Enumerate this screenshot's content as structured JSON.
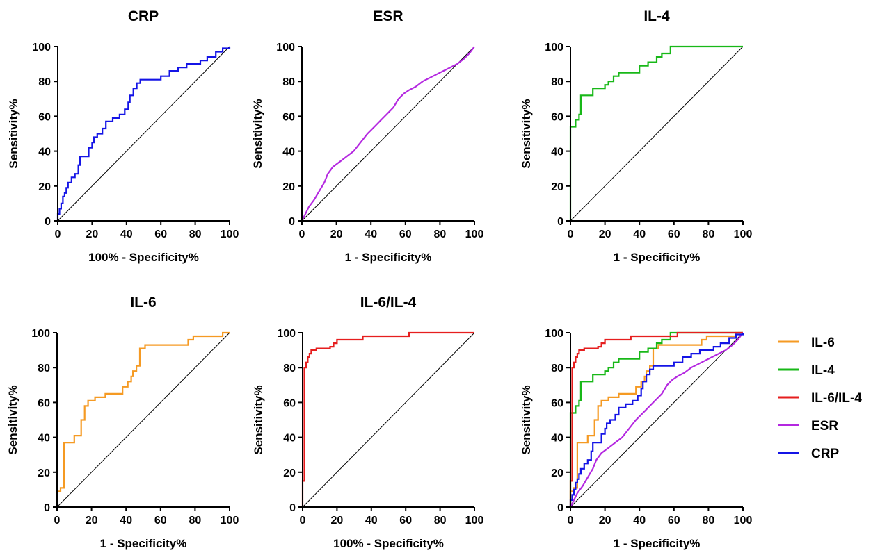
{
  "chart_data": [
    {
      "type": "line",
      "title": "CRP",
      "xlabel": "100% - Specificity%",
      "ylabel": "Sensitivity%",
      "xlim": [
        0,
        100
      ],
      "ylim": [
        0,
        100
      ],
      "xticks": [
        "0",
        "20",
        "40",
        "60",
        "80",
        "100"
      ],
      "yticks": [
        "0",
        "20",
        "40",
        "60",
        "80",
        "100"
      ],
      "reference_line": true,
      "series": [
        {
          "color": "#1414e6",
          "points": [
            [
              0,
              0
            ],
            [
              0,
              4
            ],
            [
              1,
              4
            ],
            [
              1,
              7
            ],
            [
              2,
              7
            ],
            [
              2,
              10
            ],
            [
              3,
              10
            ],
            [
              3,
              14
            ],
            [
              4,
              14
            ],
            [
              4,
              16
            ],
            [
              5,
              16
            ],
            [
              5,
              19
            ],
            [
              6,
              19
            ],
            [
              6,
              22
            ],
            [
              8,
              22
            ],
            [
              8,
              25
            ],
            [
              10,
              25
            ],
            [
              10,
              27
            ],
            [
              12,
              27
            ],
            [
              12,
              32
            ],
            [
              13,
              32
            ],
            [
              13,
              37
            ],
            [
              18,
              37
            ],
            [
              18,
              42
            ],
            [
              20,
              42
            ],
            [
              20,
              45
            ],
            [
              21,
              45
            ],
            [
              21,
              48
            ],
            [
              23,
              48
            ],
            [
              23,
              50
            ],
            [
              26,
              50
            ],
            [
              26,
              53
            ],
            [
              28,
              53
            ],
            [
              28,
              57
            ],
            [
              32,
              57
            ],
            [
              32,
              59
            ],
            [
              36,
              59
            ],
            [
              36,
              61
            ],
            [
              39,
              61
            ],
            [
              39,
              64
            ],
            [
              41,
              64
            ],
            [
              41,
              68
            ],
            [
              42,
              68
            ],
            [
              42,
              72
            ],
            [
              44,
              72
            ],
            [
              44,
              76
            ],
            [
              46,
              76
            ],
            [
              46,
              79
            ],
            [
              48,
              79
            ],
            [
              48,
              81
            ],
            [
              60,
              81
            ],
            [
              60,
              83
            ],
            [
              65,
              83
            ],
            [
              65,
              86
            ],
            [
              70,
              86
            ],
            [
              70,
              88
            ],
            [
              75,
              88
            ],
            [
              75,
              90
            ],
            [
              83,
              90
            ],
            [
              83,
              92
            ],
            [
              87,
              92
            ],
            [
              87,
              94
            ],
            [
              92,
              94
            ],
            [
              92,
              97
            ],
            [
              96,
              97
            ],
            [
              96,
              99
            ],
            [
              100,
              99
            ],
            [
              100,
              100
            ]
          ]
        }
      ]
    },
    {
      "type": "line",
      "title": "ESR",
      "xlabel": "1 - Specificity%",
      "ylabel": "Sensitivity%",
      "xlim": [
        0,
        100
      ],
      "ylim": [
        0,
        100
      ],
      "xticks": [
        "0",
        "20",
        "40",
        "60",
        "80",
        "100"
      ],
      "yticks": [
        "0",
        "20",
        "40",
        "60",
        "80",
        "100"
      ],
      "reference_line": true,
      "series": [
        {
          "color": "#b428e0",
          "points": [
            [
              0,
              0
            ],
            [
              2,
              4
            ],
            [
              4,
              8
            ],
            [
              7,
              12
            ],
            [
              10,
              17
            ],
            [
              13,
              22
            ],
            [
              15,
              27
            ],
            [
              18,
              31
            ],
            [
              22,
              34
            ],
            [
              26,
              37
            ],
            [
              30,
              40
            ],
            [
              34,
              45
            ],
            [
              38,
              50
            ],
            [
              42,
              54
            ],
            [
              46,
              58
            ],
            [
              50,
              62
            ],
            [
              53,
              65
            ],
            [
              56,
              70
            ],
            [
              59,
              73
            ],
            [
              62,
              75
            ],
            [
              66,
              77
            ],
            [
              70,
              80
            ],
            [
              74,
              82
            ],
            [
              78,
              84
            ],
            [
              82,
              86
            ],
            [
              86,
              88
            ],
            [
              90,
              90
            ],
            [
              94,
              93
            ],
            [
              97,
              96
            ],
            [
              100,
              100
            ]
          ]
        }
      ]
    },
    {
      "type": "line",
      "title": "IL-4",
      "xlabel": "1 - Specificity%",
      "ylabel": "Sensitivity%",
      "xlim": [
        0,
        100
      ],
      "ylim": [
        0,
        100
      ],
      "xticks": [
        "0",
        "20",
        "40",
        "60",
        "80",
        "100"
      ],
      "yticks": [
        "0",
        "20",
        "40",
        "60",
        "80",
        "100"
      ],
      "reference_line": true,
      "series": [
        {
          "color": "#18b818",
          "points": [
            [
              0,
              0
            ],
            [
              0,
              54
            ],
            [
              3,
              54
            ],
            [
              3,
              58
            ],
            [
              5,
              58
            ],
            [
              5,
              61
            ],
            [
              6,
              61
            ],
            [
              6,
              72
            ],
            [
              13,
              72
            ],
            [
              13,
              76
            ],
            [
              20,
              76
            ],
            [
              20,
              78
            ],
            [
              22,
              78
            ],
            [
              22,
              80
            ],
            [
              25,
              80
            ],
            [
              25,
              83
            ],
            [
              28,
              83
            ],
            [
              28,
              85
            ],
            [
              40,
              85
            ],
            [
              40,
              89
            ],
            [
              45,
              89
            ],
            [
              45,
              91
            ],
            [
              50,
              91
            ],
            [
              50,
              94
            ],
            [
              53,
              94
            ],
            [
              53,
              96
            ],
            [
              58,
              96
            ],
            [
              58,
              100
            ],
            [
              100,
              100
            ]
          ]
        }
      ]
    },
    {
      "type": "line",
      "title": "IL-6",
      "xlabel": "1 - Specificity%",
      "ylabel": "Sensitivity%",
      "xlim": [
        0,
        100
      ],
      "ylim": [
        0,
        100
      ],
      "xticks": [
        "0",
        "20",
        "40",
        "60",
        "80",
        "100"
      ],
      "yticks": [
        "0",
        "20",
        "40",
        "60",
        "80",
        "100"
      ],
      "reference_line": true,
      "series": [
        {
          "color": "#f59a23",
          "points": [
            [
              0,
              0
            ],
            [
              0,
              9
            ],
            [
              2,
              9
            ],
            [
              2,
              11
            ],
            [
              4,
              11
            ],
            [
              4,
              37
            ],
            [
              10,
              37
            ],
            [
              10,
              41
            ],
            [
              14,
              41
            ],
            [
              14,
              50
            ],
            [
              16,
              50
            ],
            [
              16,
              58
            ],
            [
              18,
              58
            ],
            [
              18,
              61
            ],
            [
              22,
              61
            ],
            [
              22,
              63
            ],
            [
              28,
              63
            ],
            [
              28,
              65
            ],
            [
              38,
              65
            ],
            [
              38,
              69
            ],
            [
              41,
              69
            ],
            [
              41,
              72
            ],
            [
              43,
              72
            ],
            [
              43,
              75
            ],
            [
              44,
              75
            ],
            [
              44,
              78
            ],
            [
              46,
              78
            ],
            [
              46,
              81
            ],
            [
              48,
              81
            ],
            [
              48,
              91
            ],
            [
              51,
              91
            ],
            [
              51,
              93
            ],
            [
              76,
              93
            ],
            [
              76,
              96
            ],
            [
              79,
              96
            ],
            [
              79,
              98
            ],
            [
              96,
              98
            ],
            [
              96,
              100
            ],
            [
              100,
              100
            ]
          ]
        }
      ]
    },
    {
      "type": "line",
      "title": "IL-6/IL-4",
      "xlabel": "100% - Specificity%",
      "ylabel": "Sensitivity%",
      "xlim": [
        0,
        100
      ],
      "ylim": [
        0,
        100
      ],
      "xticks": [
        "0",
        "20",
        "40",
        "60",
        "80",
        "100"
      ],
      "yticks": [
        "0",
        "20",
        "40",
        "60",
        "80",
        "100"
      ],
      "reference_line": true,
      "series": [
        {
          "color": "#e61e1e",
          "points": [
            [
              0,
              0
            ],
            [
              0,
              15
            ],
            [
              1,
              15
            ],
            [
              1,
              80
            ],
            [
              2,
              80
            ],
            [
              2,
              83
            ],
            [
              3,
              83
            ],
            [
              3,
              86
            ],
            [
              4,
              86
            ],
            [
              4,
              88
            ],
            [
              5,
              88
            ],
            [
              5,
              90
            ],
            [
              8,
              90
            ],
            [
              8,
              91
            ],
            [
              16,
              91
            ],
            [
              16,
              92
            ],
            [
              18,
              92
            ],
            [
              18,
              94
            ],
            [
              20,
              94
            ],
            [
              20,
              96
            ],
            [
              35,
              96
            ],
            [
              35,
              98
            ],
            [
              62,
              98
            ],
            [
              62,
              100
            ],
            [
              100,
              100
            ]
          ]
        }
      ]
    },
    {
      "type": "line",
      "title": "",
      "xlabel": "1 - Specificity%",
      "ylabel": "Sensitivity%",
      "xlim": [
        0,
        100
      ],
      "ylim": [
        0,
        100
      ],
      "xticks": [
        "0",
        "20",
        "40",
        "60",
        "80",
        "100"
      ],
      "yticks": [
        "0",
        "20",
        "40",
        "60",
        "80",
        "100"
      ],
      "reference_line": true,
      "legend_placement": "right",
      "series": [
        {
          "name": "IL-6",
          "color": "#f59a23",
          "source": 3
        },
        {
          "name": "IL-4",
          "color": "#18b818",
          "source": 2
        },
        {
          "name": "IL-6/IL-4",
          "color": "#e61e1e",
          "source": 4
        },
        {
          "name": "ESR",
          "color": "#b428e0",
          "source": 1
        },
        {
          "name": "CRP",
          "color": "#1414e6",
          "source": 0
        }
      ]
    }
  ]
}
